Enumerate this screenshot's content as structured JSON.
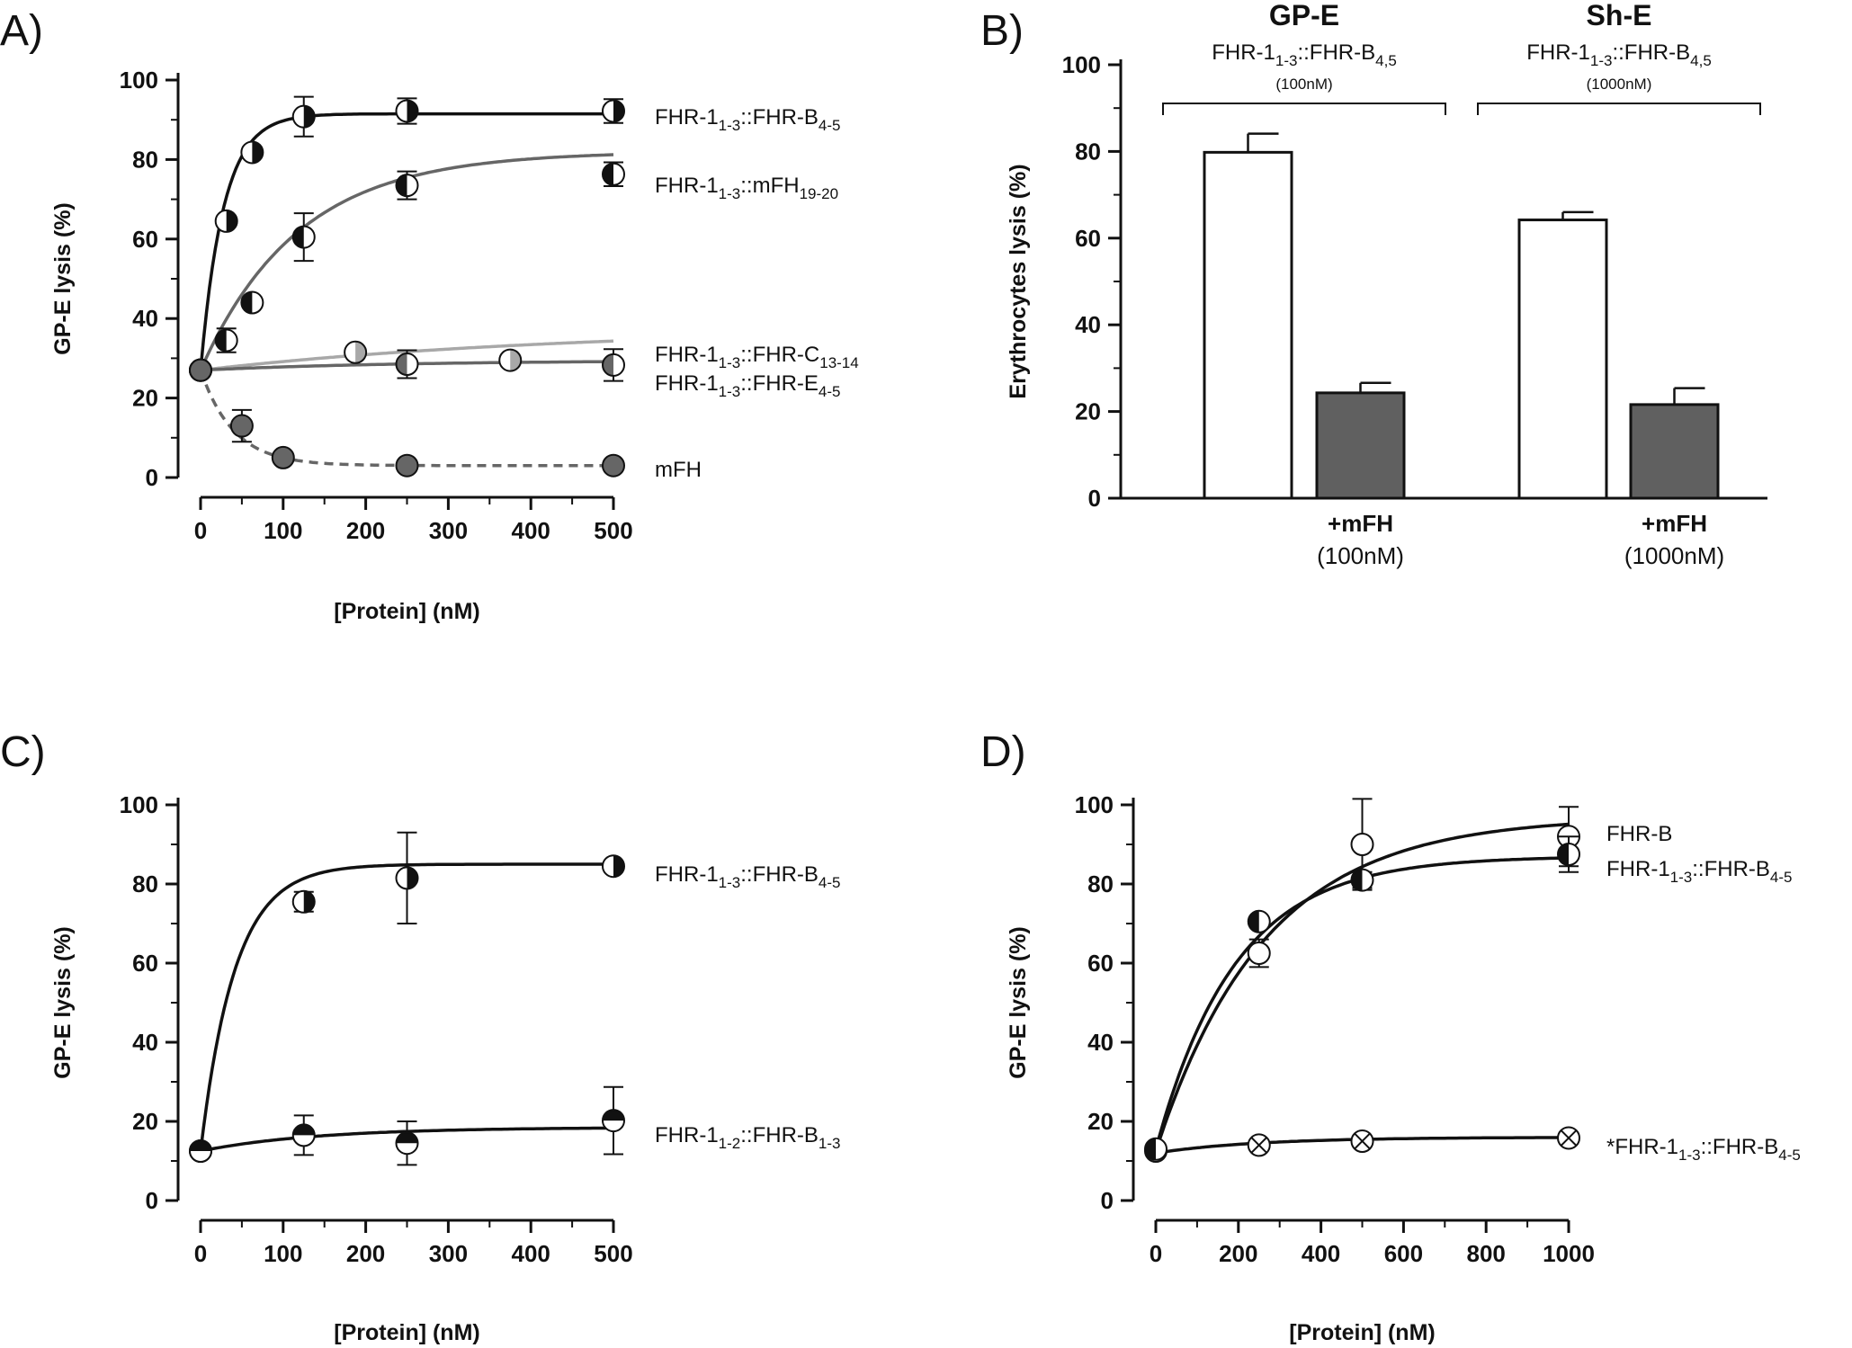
{
  "chart_data": [
    {
      "id": "A",
      "panel_label": "A)",
      "type": "scatter",
      "xlabel": "[Protein] (nM)",
      "ylabel": "GP-E lysis (%)",
      "xlim": [
        0,
        500
      ],
      "ylim": [
        0,
        100
      ],
      "xticks": [
        "0",
        "100",
        "200",
        "300",
        "400",
        "500"
      ],
      "yticks": [
        "0",
        "20",
        "40",
        "60",
        "80",
        "100"
      ],
      "grid": false,
      "series": [
        {
          "name": "FHR-1_{1-3}::FHR-B_{4-5}",
          "label_parts": [
            {
              "t": "FHR-1"
            },
            {
              "t": "1-3",
              "sub": true
            },
            {
              "t": "::FHR-B"
            },
            {
              "t": "4-5",
              "sub": true
            }
          ],
          "marker": "half-right",
          "fill": "#111111",
          "curve": {
            "y0": 27,
            "ymax": 91.5,
            "k": 0.036,
            "color": "#111111",
            "dash": false
          },
          "x": [
            0,
            31.25,
            62.5,
            125,
            250,
            500
          ],
          "y": [
            27,
            64.5,
            81.8,
            90.8,
            92.2,
            92.2
          ],
          "err": [
            0,
            0,
            0,
            5,
            3.2,
            3
          ]
        },
        {
          "name": "FHR-1_{1-3}::mFH_{19-20}",
          "label_parts": [
            {
              "t": "FHR-1"
            },
            {
              "t": "1-3",
              "sub": true
            },
            {
              "t": "::mFH"
            },
            {
              "t": "19-20",
              "sub": true
            }
          ],
          "marker": "half-left",
          "fill": "#111111",
          "curve": {
            "y0": 27,
            "ymax": 82,
            "k": 0.0085,
            "color": "#666666",
            "dash": false
          },
          "x": [
            0,
            31.25,
            62.5,
            125,
            250,
            500
          ],
          "y": [
            27,
            34.5,
            44,
            60.5,
            73.5,
            76.3
          ],
          "err": [
            0,
            3,
            0,
            6,
            3.5,
            3
          ]
        },
        {
          "name": "FHR-1_{1-3}::FHR-C_{13-14}",
          "label_parts": [
            {
              "t": "FHR-1"
            },
            {
              "t": "1-3",
              "sub": true
            },
            {
              "t": "::FHR-C"
            },
            {
              "t": "13-14",
              "sub": true
            }
          ],
          "marker": "half-right",
          "fill": "#a8a8a8",
          "curve": {
            "y0": 27,
            "ymax": 38,
            "k": 0.0022,
            "color": "#a8a8a8",
            "dash": false
          },
          "x": [
            0,
            187.5,
            375
          ],
          "y": [
            27,
            31.5,
            29.5
          ],
          "err": [
            0,
            0,
            0
          ]
        },
        {
          "name": "FHR-1_{1-3}::FHR-E_{4-5}",
          "label_parts": [
            {
              "t": "FHR-1"
            },
            {
              "t": "1-3",
              "sub": true
            },
            {
              "t": "::FHR-E"
            },
            {
              "t": "4-5",
              "sub": true
            }
          ],
          "marker": "half-left",
          "fill": "#666666",
          "curve": {
            "y0": 27,
            "ymax": 29.5,
            "k": 0.004,
            "color": "#666666",
            "dash": false
          },
          "x": [
            0,
            250,
            500
          ],
          "y": [
            27,
            28.5,
            28.3
          ],
          "err": [
            0,
            3.5,
            4
          ]
        },
        {
          "name": "mFH",
          "label_parts": [
            {
              "t": "mFH"
            }
          ],
          "marker": "full",
          "fill": "#666666",
          "curve": {
            "y0": 27,
            "ymax": 3,
            "k": 0.025,
            "color": "#666666",
            "dash": true
          },
          "x": [
            0,
            50,
            100,
            250,
            500
          ],
          "y": [
            27,
            13,
            5,
            3,
            3
          ],
          "err": [
            0,
            4,
            0,
            0,
            0
          ]
        }
      ]
    },
    {
      "id": "B",
      "panel_label": "B)",
      "type": "bar",
      "ylabel": "Erythrocytes lysis (%)",
      "ylim": [
        0,
        100
      ],
      "yticks": [
        "0",
        "20",
        "40",
        "60",
        "80",
        "100"
      ],
      "grid": false,
      "groups": [
        {
          "title": "GP-E",
          "subtitle_parts": [
            {
              "t": "FHR-1"
            },
            {
              "t": "1-3",
              "sub": true
            },
            {
              "t": "::FHR-B"
            },
            {
              "t": "4,5",
              "sub": true
            }
          ],
          "conc": "(100nM)",
          "add_label": "+mFH",
          "add_conc": "(100nM)"
        },
        {
          "title": "Sh-E",
          "subtitle_parts": [
            {
              "t": "FHR-1"
            },
            {
              "t": "1-3",
              "sub": true
            },
            {
              "t": "::FHR-B"
            },
            {
              "t": "4,5",
              "sub": true
            }
          ],
          "conc": "(1000nM)",
          "add_label": "+mFH",
          "add_conc": "(1000nM)"
        }
      ],
      "bars": [
        {
          "group": 0,
          "name": "GP-E alone",
          "value": 79.8,
          "err": 4.3,
          "fill": "#ffffff"
        },
        {
          "group": 0,
          "name": "GP-E +mFH",
          "value": 24.3,
          "err": 2.3,
          "fill": "#606060"
        },
        {
          "group": 1,
          "name": "Sh-E alone",
          "value": 64.2,
          "err": 1.8,
          "fill": "#ffffff"
        },
        {
          "group": 1,
          "name": "Sh-E +mFH",
          "value": 21.6,
          "err": 3.8,
          "fill": "#606060"
        }
      ]
    },
    {
      "id": "C",
      "panel_label": "C)",
      "type": "scatter",
      "xlabel": "[Protein] (nM)",
      "ylabel": "GP-E lysis (%)",
      "xlim": [
        0,
        500
      ],
      "ylim": [
        0,
        100
      ],
      "xticks": [
        "0",
        "100",
        "200",
        "300",
        "400",
        "500"
      ],
      "yticks": [
        "0",
        "20",
        "40",
        "60",
        "80",
        "100"
      ],
      "grid": false,
      "series": [
        {
          "name": "FHR-1_{1-3}::FHR-B_{4-5}",
          "label_parts": [
            {
              "t": "FHR-1"
            },
            {
              "t": "1-3",
              "sub": true
            },
            {
              "t": "::FHR-B"
            },
            {
              "t": "4-5",
              "sub": true
            }
          ],
          "marker": "half-right",
          "fill": "#111111",
          "curve": {
            "y0": 12.5,
            "ymax": 85,
            "k": 0.024,
            "color": "#111111",
            "dash": false
          },
          "x": [
            0,
            125,
            250,
            500
          ],
          "y": [
            12.5,
            75.5,
            81.5,
            84.5
          ],
          "err": [
            0,
            2.5,
            11.5,
            0
          ]
        },
        {
          "name": "FHR-1_{1-2}::FHR-B_{1-3}",
          "label_parts": [
            {
              "t": "FHR-1"
            },
            {
              "t": "1-2",
              "sub": true
            },
            {
              "t": "::FHR-B"
            },
            {
              "t": "1-3",
              "sub": true
            }
          ],
          "marker": "half-top",
          "fill": "#111111",
          "curve": {
            "y0": 12.5,
            "ymax": 18.5,
            "k": 0.007,
            "color": "#111111",
            "dash": false
          },
          "x": [
            0,
            125,
            250,
            500
          ],
          "y": [
            12.5,
            16.5,
            14.5,
            20.2
          ],
          "err": [
            0,
            5,
            5.5,
            8.5
          ]
        }
      ]
    },
    {
      "id": "D",
      "panel_label": "D)",
      "type": "scatter",
      "xlabel": "[Protein] (nM)",
      "ylabel": "GP-E lysis (%)",
      "xlim": [
        0,
        1000
      ],
      "ylim": [
        0,
        100
      ],
      "xticks": [
        "0",
        "200",
        "400",
        "600",
        "800",
        "1000"
      ],
      "yticks": [
        "0",
        "20",
        "40",
        "60",
        "80",
        "100"
      ],
      "grid": false,
      "series": [
        {
          "name": "FHR-B",
          "label_parts": [
            {
              "t": "FHR-B"
            }
          ],
          "marker": "open",
          "fill": "#ffffff",
          "curve": {
            "y0": 12.5,
            "ymax": 97,
            "k": 0.0038,
            "color": "#111111",
            "dash": false
          },
          "x": [
            0,
            250,
            500,
            1000
          ],
          "y": [
            12.5,
            62.5,
            90,
            92
          ],
          "err": [
            0,
            3.5,
            11.5,
            7.5
          ]
        },
        {
          "name": "FHR-1_{1-3}::FHR-B_{4-5}",
          "label_parts": [
            {
              "t": "FHR-1"
            },
            {
              "t": "1-3",
              "sub": true
            },
            {
              "t": "::FHR-B"
            },
            {
              "t": "4-5",
              "sub": true
            }
          ],
          "marker": "half-left",
          "fill": "#111111",
          "curve": {
            "y0": 13,
            "ymax": 87,
            "k": 0.0052,
            "color": "#111111",
            "dash": false
          },
          "x": [
            0,
            250,
            500,
            1000
          ],
          "y": [
            13,
            70.5,
            81,
            87.5
          ],
          "err": [
            0,
            0,
            2,
            4.5
          ]
        },
        {
          "name": "*FHR-1_{1-3}::FHR-B_{4-5}",
          "label_parts": [
            {
              "t": "*FHR-1"
            },
            {
              "t": "1-3",
              "sub": true
            },
            {
              "t": "::FHR-B"
            },
            {
              "t": "4-5",
              "sub": true
            }
          ],
          "marker": "cross",
          "fill": "#ffffff",
          "curve": {
            "y0": 12,
            "ymax": 16,
            "k": 0.004,
            "color": "#111111",
            "dash": false
          },
          "x": [
            250,
            500,
            1000
          ],
          "y": [
            14,
            15,
            15.8
          ],
          "err": [
            0,
            0,
            0
          ]
        }
      ]
    }
  ]
}
